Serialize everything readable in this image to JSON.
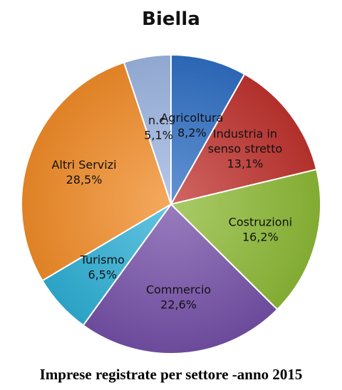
{
  "chart_data": {
    "type": "pie",
    "title": "Biella",
    "caption": "Imprese registrate per settore -anno 2015",
    "slices": [
      {
        "label": [
          "Agricoltura"
        ],
        "value_text": "8,2%",
        "value": 8.2,
        "color": "#2f6fc4"
      },
      {
        "label": [
          "Industria in",
          "senso stretto"
        ],
        "value_text": "13,1%",
        "value": 13.1,
        "color": "#c0332f"
      },
      {
        "label": [
          "Costruzioni"
        ],
        "value_text": "16,2%",
        "value": 16.2,
        "color": "#8dba36"
      },
      {
        "label": [
          "Commercio"
        ],
        "value_text": "22,6%",
        "value": 22.6,
        "color": "#7550a8"
      },
      {
        "label": [
          "Turismo"
        ],
        "value_text": "6,5%",
        "value": 6.5,
        "color": "#2fb0d6"
      },
      {
        "label": [
          "Altri Servizi"
        ],
        "value_text": "28,5%",
        "value": 28.5,
        "color": "#f28c28"
      },
      {
        "label": [
          "n.c."
        ],
        "value_text": "5,1%",
        "value": 5.1,
        "color": "#9db6e2"
      }
    ]
  }
}
